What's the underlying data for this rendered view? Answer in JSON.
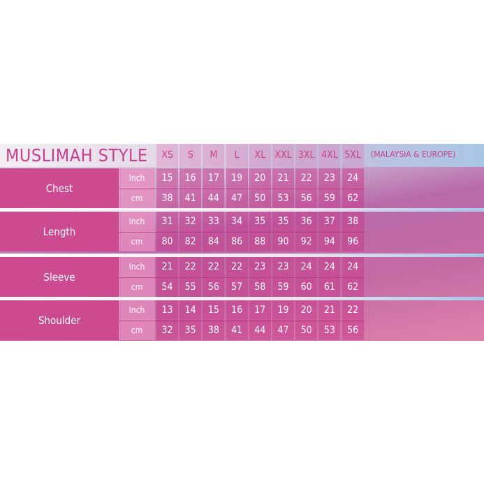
{
  "title": "MUSLIMAH STYLE",
  "region": "(MALAYSIA & EUROPE)",
  "sizes": [
    "XS",
    "S",
    "M",
    "L",
    "XL",
    "XXL",
    "3XL",
    "4XL",
    "5XL"
  ],
  "measurements": [
    {
      "label": "Chest",
      "rows": [
        {
          "unit": "Inch",
          "values": [
            "15",
            "16",
            "17",
            "19",
            "20",
            "21",
            "22",
            "23",
            "24"
          ]
        },
        {
          "unit": "cm",
          "values": [
            "38",
            "41",
            "44",
            "47",
            "50",
            "53",
            "56",
            "59",
            "62"
          ]
        }
      ]
    },
    {
      "label": "Length",
      "rows": [
        {
          "unit": "Inch",
          "values": [
            "31",
            "32",
            "33",
            "34",
            "35",
            "35",
            "36",
            "37",
            "38"
          ]
        },
        {
          "unit": "cm",
          "values": [
            "80",
            "82",
            "84",
            "86",
            "88",
            "90",
            "92",
            "94",
            "96"
          ]
        }
      ]
    },
    {
      "label": "Sleeve",
      "rows": [
        {
          "unit": "Inch",
          "values": [
            "21",
            "22",
            "22",
            "22",
            "23",
            "23",
            "24",
            "24",
            "24"
          ]
        },
        {
          "unit": "cm",
          "values": [
            "54",
            "55",
            "56",
            "57",
            "58",
            "59",
            "60",
            "61",
            "62"
          ]
        }
      ]
    },
    {
      "label": "Shoulder",
      "rows": [
        {
          "unit": "Inch",
          "values": [
            "13",
            "14",
            "15",
            "16",
            "17",
            "19",
            "20",
            "21",
            "22"
          ]
        },
        {
          "unit": "cm",
          "values": [
            "32",
            "35",
            "38",
            "41",
            "44",
            "47",
            "50",
            "53",
            "56"
          ]
        }
      ]
    }
  ],
  "colors": {
    "brand": "#c53f8c",
    "label_bg": "#cc4a90"
  }
}
